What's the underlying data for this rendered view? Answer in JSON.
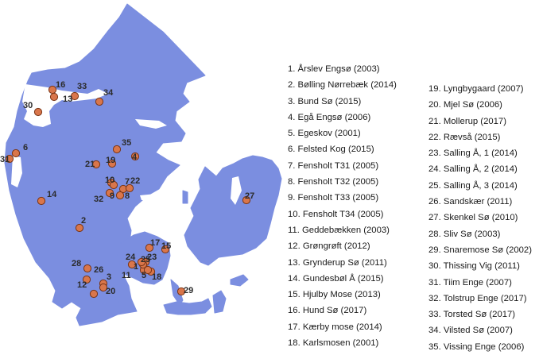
{
  "map": {
    "region": "Denmark",
    "colors": {
      "land": "#7b8ee0",
      "water": "#ffffff",
      "marker_fill": "#d9764b",
      "marker_stroke": "#7a3414"
    }
  },
  "sites": [
    {
      "n": "1",
      "label": "1. Årslev Engsø (2003)"
    },
    {
      "n": "2",
      "label": "2. Bølling Nørrebæk (2014)"
    },
    {
      "n": "3",
      "label": "3. Bund Sø (2015)"
    },
    {
      "n": "4",
      "label": "4. Egå Engsø (2006)"
    },
    {
      "n": "5",
      "label": "5. Egeskov (2001)"
    },
    {
      "n": "6",
      "label": "6. Felsted Kog (2015)"
    },
    {
      "n": "7",
      "label": "7. Fensholt T31 (2005)"
    },
    {
      "n": "8",
      "label": "8. Fensholt T32 (2005)"
    },
    {
      "n": "9",
      "label": "9. Fensholt T33 (2005)"
    },
    {
      "n": "10",
      "label": "10. Fensholt T34 (2005)"
    },
    {
      "n": "11",
      "label": "11. Geddebækken (2003)"
    },
    {
      "n": "12",
      "label": "12. Grøngrøft (2012)"
    },
    {
      "n": "13",
      "label": "13. Grynderup Sø (2011)"
    },
    {
      "n": "14",
      "label": "14. Gundesbøl Å (2015)"
    },
    {
      "n": "15",
      "label": "15. Hjulby Mose (2013)"
    },
    {
      "n": "16",
      "label": "16. Hund Sø (2017)"
    },
    {
      "n": "17",
      "label": "17. Kærby mose (2014)"
    },
    {
      "n": "18",
      "label": "18. Karlsmosen (2001)"
    },
    {
      "n": "19",
      "label": "19. Lyngbygaard (2007)"
    },
    {
      "n": "20",
      "label": "20. Mjel Sø (2006)"
    },
    {
      "n": "21",
      "label": "21. Mollerup (2017)"
    },
    {
      "n": "22",
      "label": "22. Rævså (2015)"
    },
    {
      "n": "23",
      "label": "23. Salling Å, 1 (2014)"
    },
    {
      "n": "24",
      "label": "24. Salling Å, 2 (2014)"
    },
    {
      "n": "25",
      "label": "25. Salling Å, 3 (2014)"
    },
    {
      "n": "26",
      "label": "26. Sandskær (2011)"
    },
    {
      "n": "27",
      "label": "27. Skenkel Sø (2010)"
    },
    {
      "n": "28",
      "label": "28. Sliv Sø (2003)"
    },
    {
      "n": "29",
      "label": "29. Snaremose Sø (2002)"
    },
    {
      "n": "30",
      "label": "30. Thissing Vig (2011)"
    },
    {
      "n": "31",
      "label": "31. Tiim Enge (2007)"
    },
    {
      "n": "32",
      "label": "32. Tolstrup Enge (2017)"
    },
    {
      "n": "33",
      "label": "33. Torsted Sø (2017)"
    },
    {
      "n": "34",
      "label": "34. Vilsted Sø (2007)"
    },
    {
      "n": "35",
      "label": "35. Vissing Enge (2006)"
    }
  ]
}
